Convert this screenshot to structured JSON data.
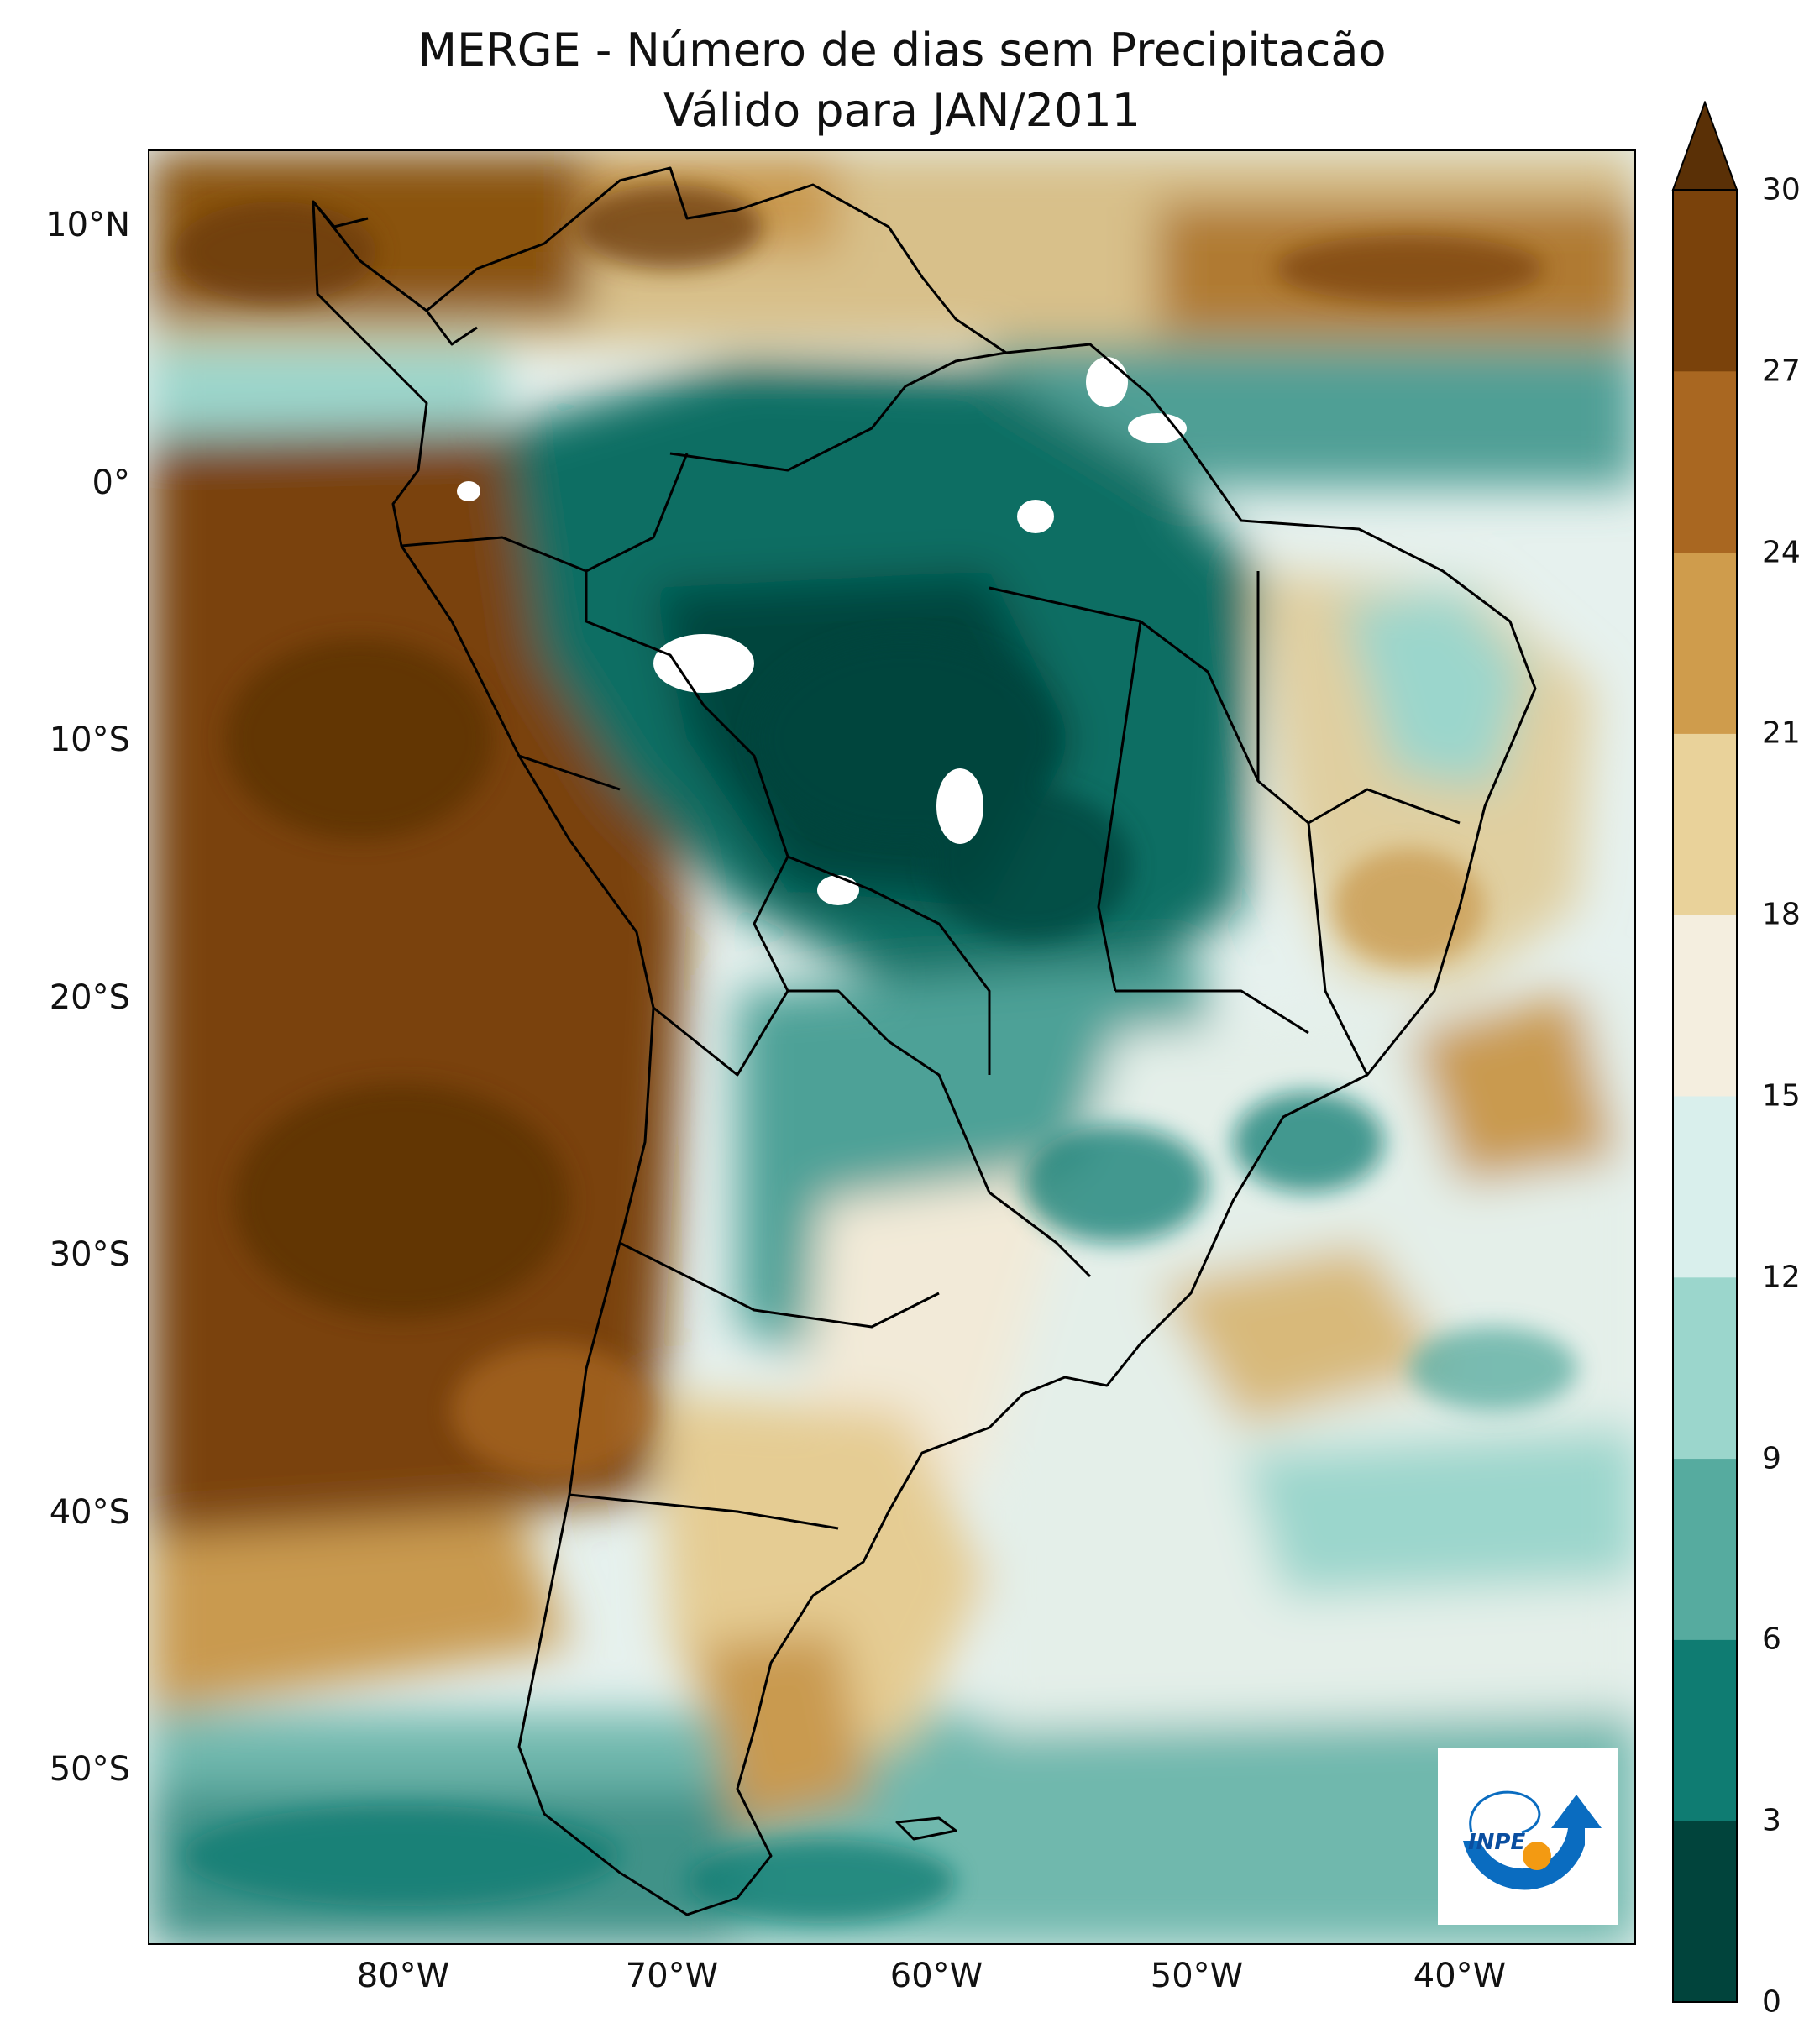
{
  "title": {
    "line1": "MERGE - Número de dias sem Precipitacão",
    "line2": "Válido para JAN/2011"
  },
  "map": {
    "latitude_ticks": [
      "10°N",
      "0°",
      "10°S",
      "20°S",
      "30°S",
      "40°S",
      "50°S"
    ],
    "longitude_ticks": [
      "80°W",
      "70°W",
      "60°W",
      "50°W",
      "40°W"
    ]
  },
  "colorbar": {
    "ticks": [
      "0",
      "3",
      "6",
      "9",
      "12",
      "15",
      "18",
      "21",
      "24",
      "27",
      "30"
    ],
    "colors": [
      "#01443c",
      "#0f7c72",
      "#56ab9f",
      "#9bd6cc",
      "#d9efec",
      "#f4eedf",
      "#e9d29a",
      "#cf9c4c",
      "#a96721",
      "#7a420b",
      "#5a3006"
    ],
    "extend": "max"
  },
  "logo": {
    "text": "INPE",
    "colors": {
      "blue": "#0a6cc0",
      "orange": "#f39a12"
    }
  }
}
